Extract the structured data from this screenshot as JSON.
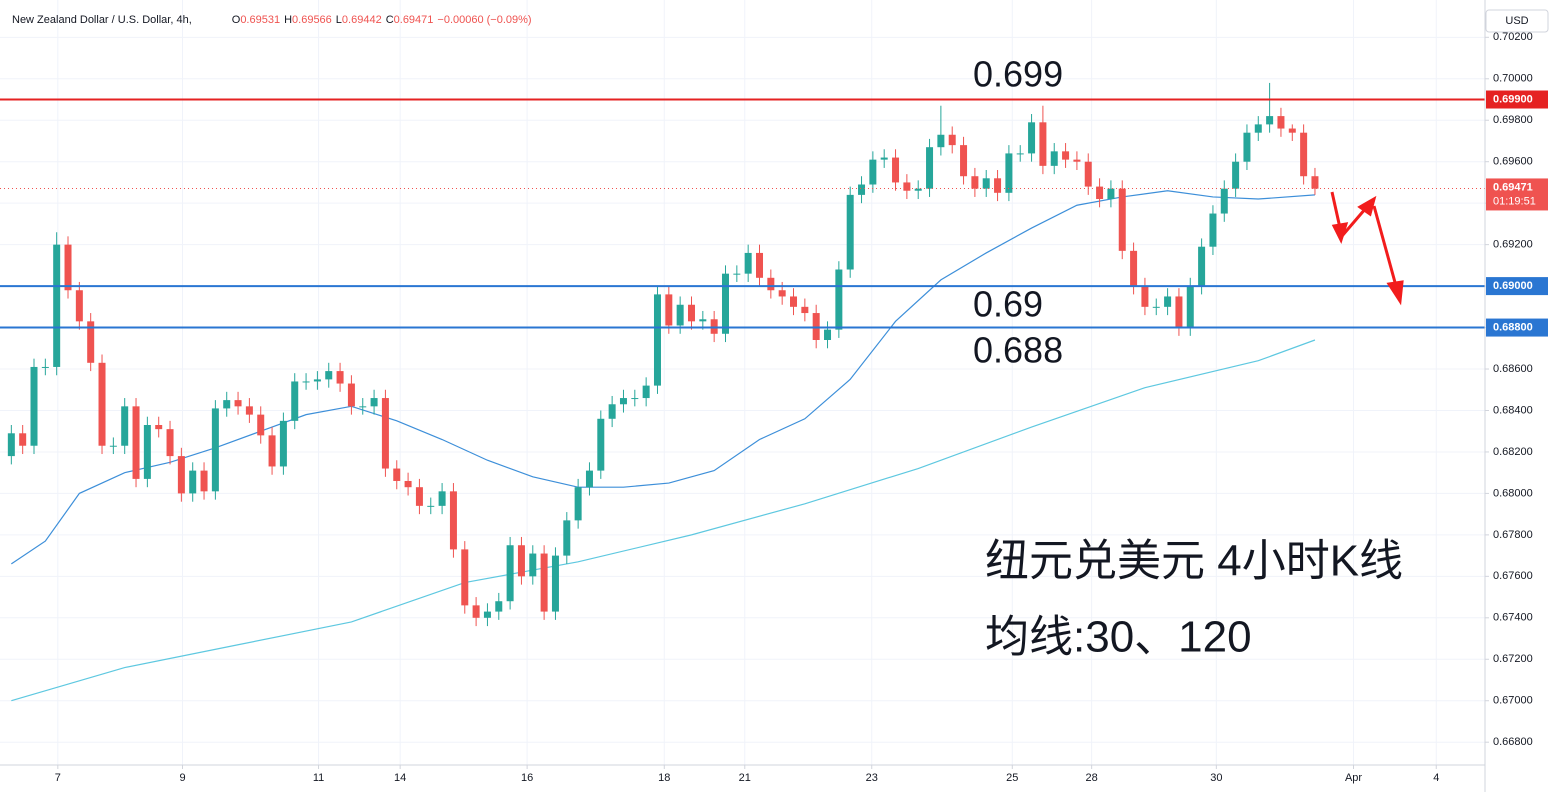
{
  "header": {
    "title": "New Zealand Dollar / U.S. Dollar, 4h,",
    "ohlc": [
      {
        "key": "O",
        "value": "0.69531"
      },
      {
        "key": "H",
        "value": "0.69566"
      },
      {
        "key": "L",
        "value": "0.69442"
      },
      {
        "key": "C",
        "value": "0.69471"
      }
    ],
    "change": "−0.00060 (−0.09%)",
    "currency": "USD"
  },
  "chart_data": {
    "type": "candlestick",
    "up_color": "#26a69a",
    "down_color": "#ef5350",
    "open": [
      0.6818,
      0.6829,
      0.6823,
      0.6861,
      0.6861,
      0.692,
      0.6898,
      0.6883,
      0.6863,
      0.6823,
      0.6823,
      0.6842,
      0.6807,
      0.6833,
      0.6831,
      0.6818,
      0.68,
      0.6811,
      0.6801,
      0.6841,
      0.6845,
      0.6842,
      0.6838,
      0.6828,
      0.6813,
      0.6835,
      0.6854,
      0.6854,
      0.6855,
      0.6859,
      0.6853,
      0.6842,
      0.6842,
      0.6846,
      0.6812,
      0.6806,
      0.6803,
      0.6794,
      0.6794,
      0.6801,
      0.6773,
      0.6746,
      0.674,
      0.6743,
      0.6748,
      0.6775,
      0.676,
      0.6771,
      0.6743,
      0.677,
      0.6787,
      0.6803,
      0.6811,
      0.6836,
      0.6843,
      0.6846,
      0.6846,
      0.6852,
      0.6896,
      0.6881,
      0.6891,
      0.6883,
      0.6884,
      0.6877,
      0.6906,
      0.6906,
      0.6916,
      0.6904,
      0.6898,
      0.6895,
      0.689,
      0.6887,
      0.6874,
      0.6879,
      0.6908,
      0.6944,
      0.6949,
      0.6961,
      0.6962,
      0.695,
      0.6946,
      0.6947,
      0.6967,
      0.6973,
      0.6968,
      0.6953,
      0.6947,
      0.6952,
      0.6945,
      0.6964,
      0.6964,
      0.6979,
      0.6958,
      0.6965,
      0.6961,
      0.696,
      0.6948,
      0.6942,
      0.6947,
      0.6917,
      0.69,
      0.689,
      0.689,
      0.6895,
      0.688,
      0.69,
      0.6919,
      0.6935,
      0.6947,
      0.696,
      0.6974,
      0.6978,
      0.6982,
      0.6976,
      0.6974,
      0.6953
    ],
    "high": [
      0.6833,
      0.6833,
      0.6865,
      0.6865,
      0.6926,
      0.6924,
      0.6902,
      0.6887,
      0.6867,
      0.6827,
      0.6846,
      0.6846,
      0.6837,
      0.6837,
      0.6835,
      0.6822,
      0.6815,
      0.6815,
      0.6845,
      0.6849,
      0.6849,
      0.6846,
      0.6842,
      0.6832,
      0.6839,
      0.6858,
      0.6858,
      0.6859,
      0.6863,
      0.6863,
      0.6857,
      0.6846,
      0.685,
      0.685,
      0.6816,
      0.681,
      0.6807,
      0.6798,
      0.6805,
      0.6805,
      0.6777,
      0.675,
      0.6747,
      0.6752,
      0.6779,
      0.6779,
      0.6775,
      0.6775,
      0.6774,
      0.6791,
      0.6807,
      0.6815,
      0.684,
      0.6847,
      0.685,
      0.685,
      0.6856,
      0.69,
      0.69,
      0.6895,
      0.6895,
      0.6888,
      0.6888,
      0.691,
      0.691,
      0.692,
      0.692,
      0.6908,
      0.6902,
      0.6899,
      0.6894,
      0.6891,
      0.6883,
      0.6912,
      0.6948,
      0.6953,
      0.6965,
      0.6966,
      0.6966,
      0.6954,
      0.6951,
      0.6971,
      0.6987,
      0.6977,
      0.6972,
      0.6957,
      0.6956,
      0.6956,
      0.6968,
      0.6968,
      0.6983,
      0.6987,
      0.6969,
      0.6969,
      0.6965,
      0.6964,
      0.6952,
      0.6951,
      0.6951,
      0.6921,
      0.6904,
      0.6894,
      0.6899,
      0.6899,
      0.6904,
      0.6923,
      0.6939,
      0.6951,
      0.6964,
      0.6978,
      0.6982,
      0.6998,
      0.6986,
      0.6978,
      0.6978,
      0.6957
    ],
    "low": [
      0.6814,
      0.6819,
      0.6819,
      0.6857,
      0.6857,
      0.6894,
      0.6879,
      0.6859,
      0.6819,
      0.6819,
      0.6819,
      0.6803,
      0.6803,
      0.6827,
      0.6814,
      0.6796,
      0.6796,
      0.6797,
      0.6797,
      0.6837,
      0.6838,
      0.6834,
      0.6824,
      0.6809,
      0.6809,
      0.6831,
      0.685,
      0.685,
      0.6851,
      0.6849,
      0.6838,
      0.6838,
      0.6838,
      0.6808,
      0.6802,
      0.6799,
      0.679,
      0.679,
      0.679,
      0.6769,
      0.6742,
      0.6736,
      0.6736,
      0.6739,
      0.6744,
      0.6756,
      0.6756,
      0.6739,
      0.6739,
      0.6766,
      0.6783,
      0.6799,
      0.6807,
      0.6832,
      0.6839,
      0.6842,
      0.6842,
      0.6848,
      0.6877,
      0.6877,
      0.6879,
      0.6879,
      0.6873,
      0.6873,
      0.6902,
      0.6902,
      0.69,
      0.6894,
      0.6891,
      0.6886,
      0.6883,
      0.687,
      0.687,
      0.6875,
      0.6904,
      0.694,
      0.6945,
      0.6957,
      0.6946,
      0.6942,
      0.6942,
      0.6943,
      0.6963,
      0.6964,
      0.6949,
      0.6943,
      0.6943,
      0.6941,
      0.6941,
      0.696,
      0.696,
      0.6954,
      0.6954,
      0.6957,
      0.6956,
      0.6944,
      0.6938,
      0.6938,
      0.6913,
      0.6896,
      0.6886,
      0.6886,
      0.6886,
      0.6876,
      0.6876,
      0.6896,
      0.6915,
      0.6931,
      0.6943,
      0.6956,
      0.697,
      0.6974,
      0.6972,
      0.697,
      0.6949,
      0.6944
    ],
    "close": [
      0.6829,
      0.6823,
      0.6861,
      0.6861,
      0.692,
      0.6898,
      0.6883,
      0.6863,
      0.6823,
      0.6823,
      0.6842,
      0.6807,
      0.6833,
      0.6831,
      0.6818,
      0.68,
      0.6811,
      0.6801,
      0.6841,
      0.6845,
      0.6842,
      0.6838,
      0.6828,
      0.6813,
      0.6835,
      0.6854,
      0.6854,
      0.6855,
      0.6859,
      0.6853,
      0.6842,
      0.6842,
      0.6846,
      0.6812,
      0.6806,
      0.6803,
      0.6794,
      0.6794,
      0.6801,
      0.6773,
      0.6746,
      0.674,
      0.6743,
      0.6748,
      0.6775,
      0.676,
      0.6771,
      0.6743,
      0.677,
      0.6787,
      0.6803,
      0.6811,
      0.6836,
      0.6843,
      0.6846,
      0.6846,
      0.6852,
      0.6896,
      0.6881,
      0.6891,
      0.6883,
      0.6884,
      0.6877,
      0.6906,
      0.6906,
      0.6916,
      0.6904,
      0.6898,
      0.6895,
      0.689,
      0.6887,
      0.6874,
      0.6879,
      0.6908,
      0.6944,
      0.6949,
      0.6961,
      0.6962,
      0.695,
      0.6946,
      0.6947,
      0.6967,
      0.6973,
      0.6968,
      0.6953,
      0.6947,
      0.6952,
      0.6945,
      0.6964,
      0.6964,
      0.6979,
      0.6958,
      0.6965,
      0.6961,
      0.696,
      0.6948,
      0.6942,
      0.6947,
      0.6917,
      0.69,
      0.689,
      0.689,
      0.6895,
      0.688,
      0.69,
      0.6919,
      0.6935,
      0.6947,
      0.696,
      0.6974,
      0.6978,
      0.6982,
      0.6976,
      0.6974,
      0.6953,
      0.6947
    ],
    "series": [
      {
        "color": "#3d8fd9",
        "x": [
          0,
          3,
          6,
          10,
          14,
          18,
          22,
          26,
          30,
          34,
          38,
          42,
          46,
          50,
          54,
          58,
          62,
          66,
          70,
          74,
          78,
          82,
          86,
          90,
          94,
          98,
          102,
          106,
          110,
          115
        ],
        "values": [
          0.6766,
          0.6777,
          0.68,
          0.681,
          0.6815,
          0.6822,
          0.683,
          0.6838,
          0.6842,
          0.6835,
          0.6826,
          0.6816,
          0.6808,
          0.6803,
          0.6803,
          0.6805,
          0.6811,
          0.6826,
          0.6836,
          0.6855,
          0.6883,
          0.6903,
          0.6916,
          0.6928,
          0.6939,
          0.6943,
          0.6946,
          0.6943,
          0.6942,
          0.6944
        ]
      },
      {
        "color": "#5ec8e0",
        "x": [
          0,
          10,
          20,
          30,
          40,
          50,
          60,
          70,
          80,
          90,
          100,
          110,
          115
        ],
        "values": [
          0.67,
          0.6716,
          0.6727,
          0.6738,
          0.6757,
          0.6767,
          0.678,
          0.6795,
          0.6812,
          0.6832,
          0.6851,
          0.6864,
          0.6874
        ]
      }
    ],
    "xlim": [
      -1,
      130
    ],
    "xticks": [
      {
        "value": 4.1,
        "label": "7"
      },
      {
        "value": 15.1,
        "label": "9"
      },
      {
        "value": 27.1,
        "label": "11"
      },
      {
        "value": 34.3,
        "label": "14"
      },
      {
        "value": 45.5,
        "label": "16"
      },
      {
        "value": 57.6,
        "label": "18"
      },
      {
        "value": 64.7,
        "label": "21"
      },
      {
        "value": 75.9,
        "label": "23"
      },
      {
        "value": 88.3,
        "label": "25"
      },
      {
        "value": 95.3,
        "label": "28"
      },
      {
        "value": 106.3,
        "label": "30"
      },
      {
        "value": 118.4,
        "label": "Apr"
      },
      {
        "value": 125.7,
        "label": "4"
      }
    ],
    "ylim": [
      0.6669,
      0.7038
    ],
    "yticks": [
      {
        "value": 0.668,
        "label": "0.66800"
      },
      {
        "value": 0.67,
        "label": "0.67000"
      },
      {
        "value": 0.672,
        "label": "0.67200"
      },
      {
        "value": 0.674,
        "label": "0.67400"
      },
      {
        "value": 0.676,
        "label": "0.67600"
      },
      {
        "value": 0.678,
        "label": "0.67800"
      },
      {
        "value": 0.68,
        "label": "0.68000"
      },
      {
        "value": 0.682,
        "label": "0.68200"
      },
      {
        "value": 0.684,
        "label": "0.68400"
      },
      {
        "value": 0.686,
        "label": "0.68600"
      },
      {
        "value": 0.688,
        "label": "0.68800"
      },
      {
        "value": 0.69,
        "label": "0.69000"
      },
      {
        "value": 0.692,
        "label": "0.69200"
      },
      {
        "value": 0.694,
        "label": "0.69400"
      },
      {
        "value": 0.696,
        "label": "0.69600"
      },
      {
        "value": 0.698,
        "label": "0.69800"
      },
      {
        "value": 0.7,
        "label": "0.70000"
      },
      {
        "value": 0.702,
        "label": "0.70200"
      }
    ],
    "grid": true,
    "levels": [
      {
        "value": 0.699,
        "label": "0.69900",
        "color": "#e52222"
      },
      {
        "value": 0.69,
        "label": "0.69000",
        "color": "#2a76d2"
      },
      {
        "value": 0.688,
        "label": "0.68800",
        "color": "#2a76d2"
      }
    ],
    "last_price": {
      "value": 0.69471,
      "countdown": "01:19:51",
      "color": "#ef5350"
    },
    "annotations": [
      "0.699",
      "0.69",
      "0.688"
    ],
    "notes": [
      "纽元兑美元 4小时K线",
      "均线:30、120"
    ]
  }
}
